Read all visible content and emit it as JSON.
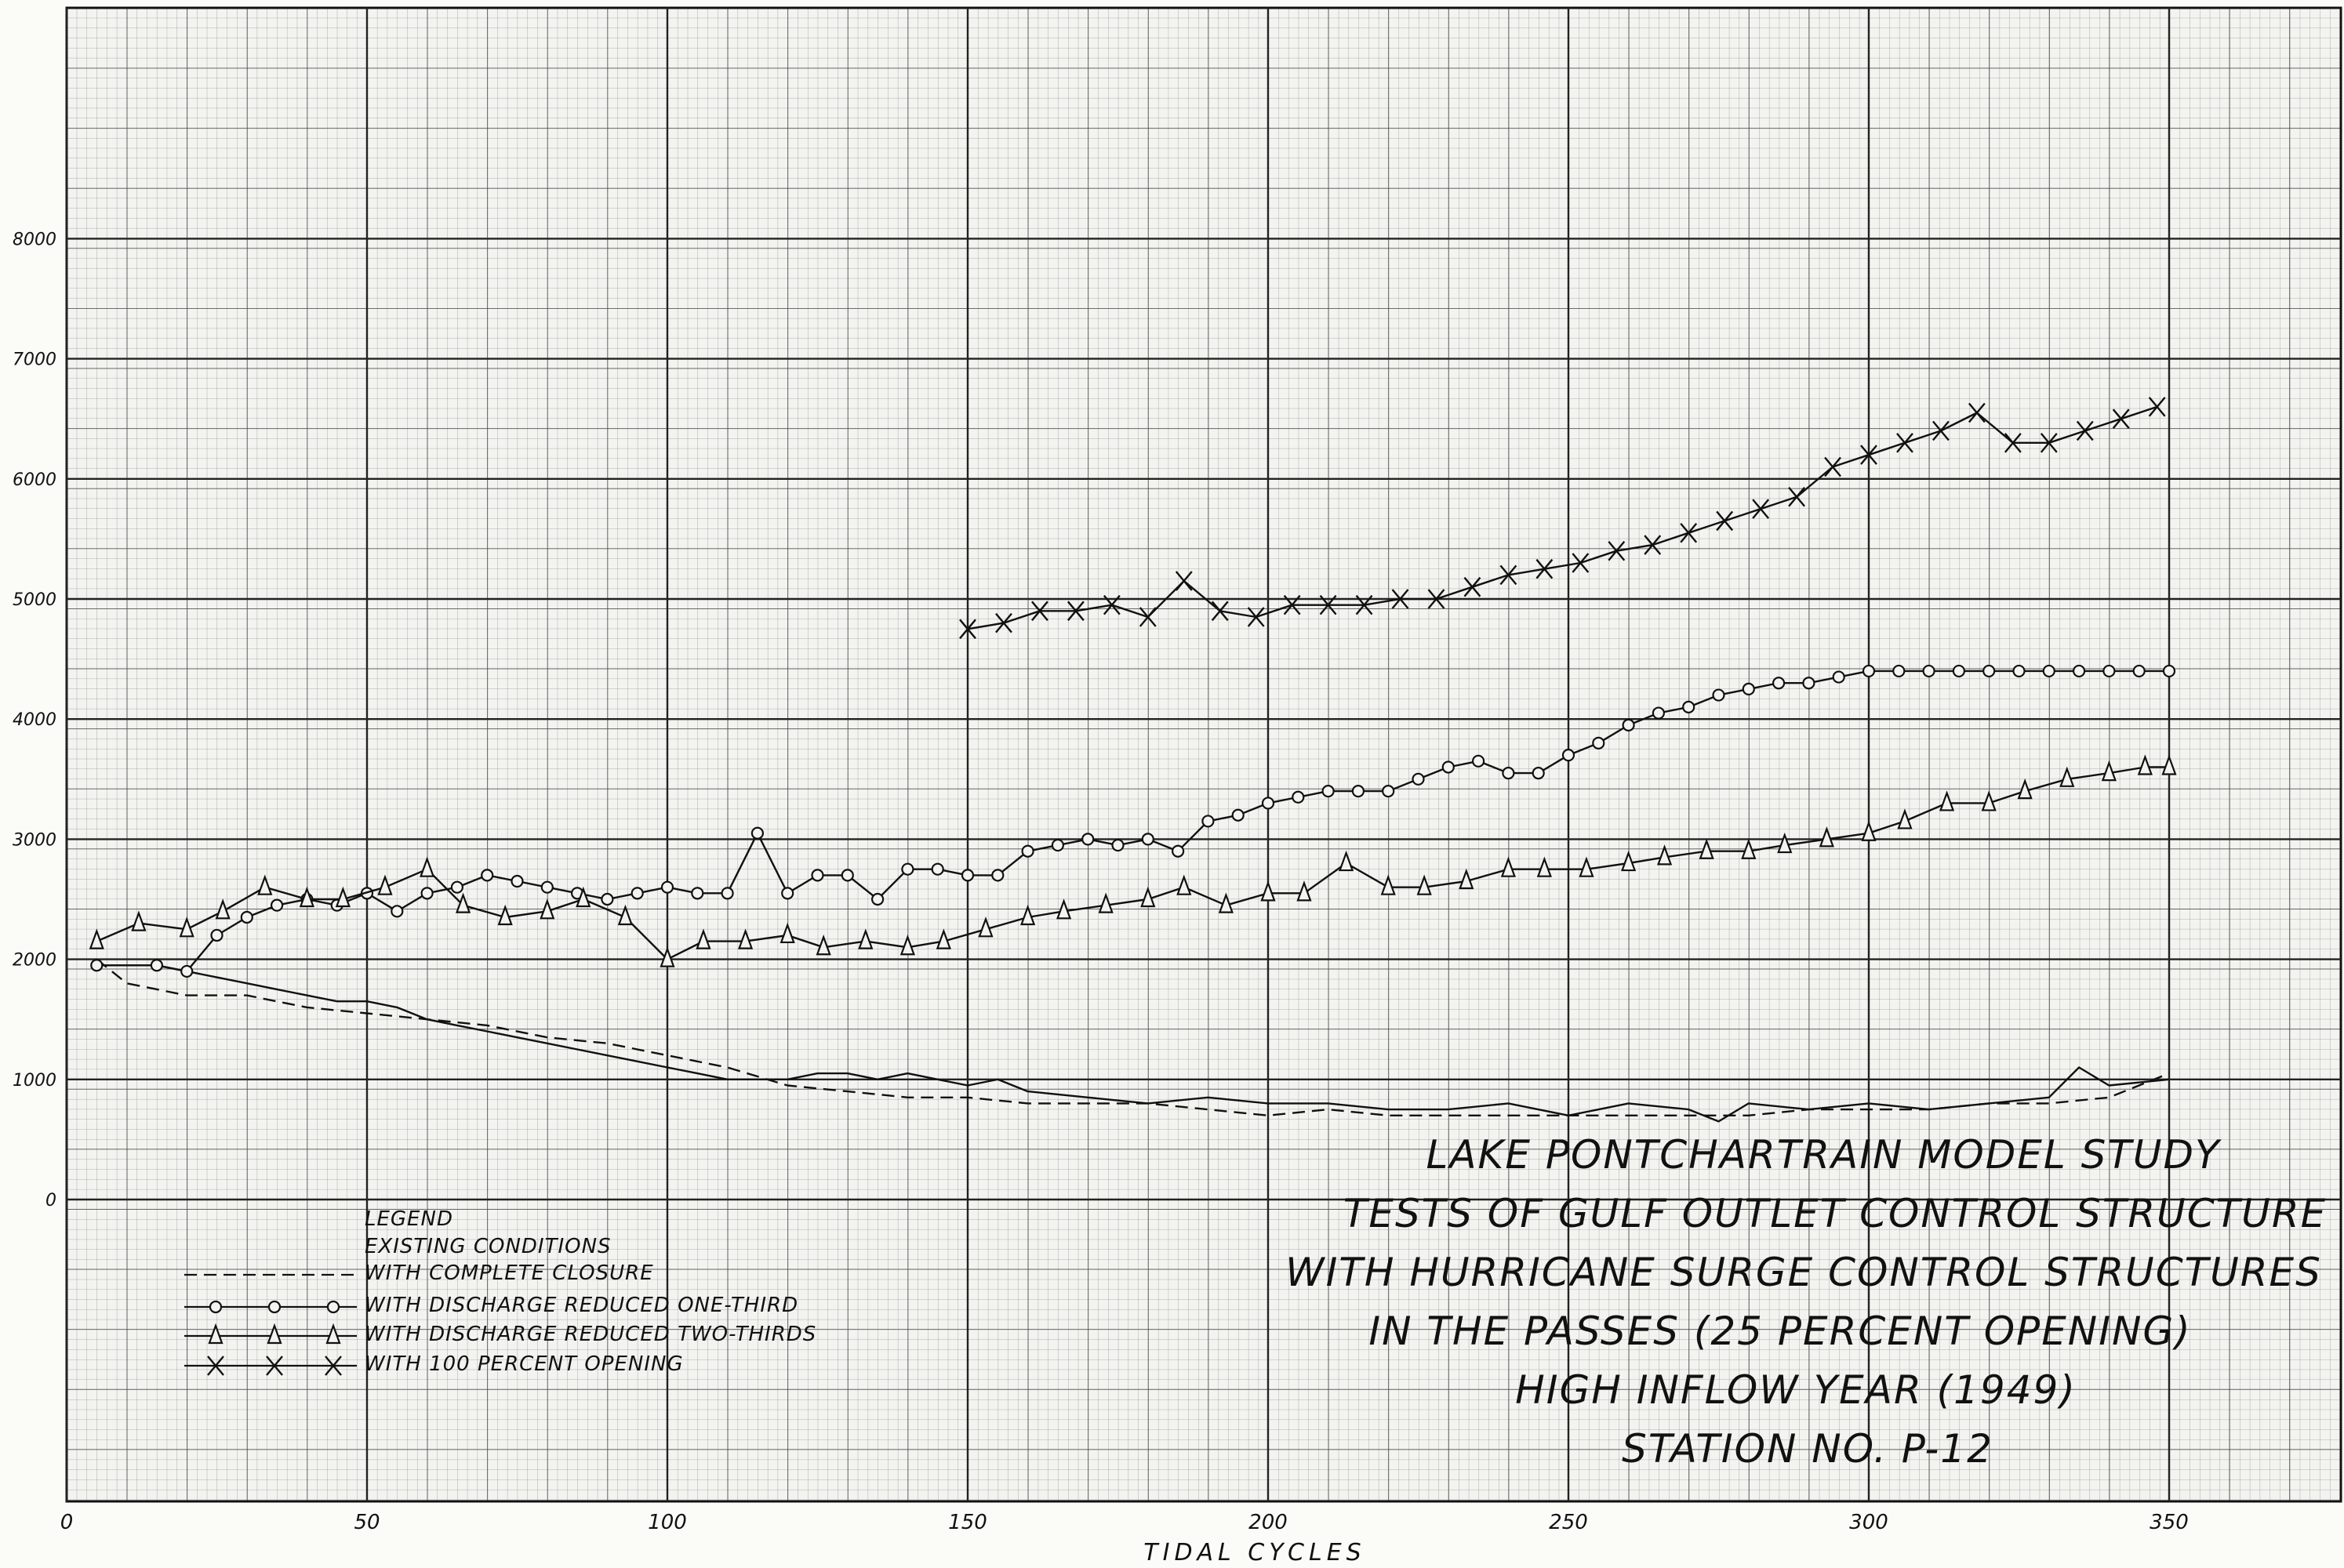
{
  "chart_data": {
    "type": "line",
    "title_lines": [
      "LAKE PONTCHARTRAIN MODEL STUDY",
      "TESTS OF GULF OUTLET CONTROL STRUCTURE",
      "WITH HURRICANE SURGE CONTROL STRUCTURES",
      "IN THE PASSES (25 PERCENT OPENING)",
      "HIGH INFLOW YEAR (1949)",
      "STATION NO. P-12"
    ],
    "xlabel": "TIDAL CYCLES",
    "ylabel": "",
    "xlim": [
      0,
      380
    ],
    "ylim": [
      -2500,
      10000
    ],
    "x_ticks": [
      "0",
      "50",
      "100",
      "150",
      "200",
      "250",
      "300",
      "350"
    ],
    "y_ticks": [
      "0",
      "1000",
      "2000",
      "3000",
      "4000",
      "5000",
      "6000",
      "7000",
      "8000"
    ],
    "grid": true,
    "legend": {
      "title": "LEGEND",
      "position": "bottom-left",
      "entries": [
        "EXISTING CONDITIONS",
        "WITH COMPLETE CLOSURE",
        "WITH DISCHARGE REDUCED ONE-THIRD",
        "WITH DISCHARGE REDUCED TWO-THIRDS",
        "WITH 100 PERCENT OPENING"
      ]
    },
    "series": [
      {
        "name": "EXISTING CONDITIONS",
        "style": "solid",
        "marker": "none",
        "x": [
          5,
          15,
          20,
          25,
          30,
          35,
          40,
          45,
          50,
          55,
          60,
          65,
          70,
          75,
          80,
          85,
          90,
          95,
          100,
          105,
          110,
          115,
          120,
          125,
          130,
          135,
          140,
          145,
          150,
          155,
          160,
          170,
          180,
          190,
          200,
          210,
          220,
          230,
          240,
          250,
          260,
          270,
          275,
          280,
          290,
          300,
          310,
          320,
          330,
          335,
          340,
          350
        ],
        "y": [
          1950,
          1950,
          1900,
          1850,
          1800,
          1750,
          1700,
          1650,
          1650,
          1600,
          1500,
          1450,
          1400,
          1350,
          1300,
          1250,
          1200,
          1150,
          1100,
          1050,
          1000,
          1000,
          1000,
          1050,
          1050,
          1000,
          1050,
          1000,
          950,
          1000,
          900,
          850,
          800,
          850,
          800,
          800,
          750,
          750,
          800,
          700,
          800,
          750,
          650,
          800,
          750,
          800,
          750,
          800,
          850,
          1100,
          950,
          1000
        ]
      },
      {
        "name": "WITH COMPLETE CLOSURE",
        "style": "dashed",
        "marker": "none",
        "x": [
          5,
          10,
          20,
          30,
          40,
          50,
          60,
          70,
          80,
          90,
          100,
          110,
          120,
          130,
          140,
          150,
          160,
          170,
          180,
          190,
          200,
          210,
          220,
          230,
          240,
          250,
          260,
          270,
          280,
          290,
          300,
          310,
          320,
          330,
          340,
          350
        ],
        "y": [
          2000,
          1800,
          1700,
          1700,
          1600,
          1550,
          1500,
          1450,
          1350,
          1300,
          1200,
          1100,
          950,
          900,
          850,
          850,
          800,
          800,
          800,
          750,
          700,
          750,
          700,
          700,
          700,
          700,
          700,
          700,
          700,
          750,
          750,
          750,
          800,
          800,
          850,
          1050
        ]
      },
      {
        "name": "WITH DISCHARGE REDUCED ONE-THIRD",
        "style": "solid",
        "marker": "circle",
        "x": [
          5,
          15,
          20,
          25,
          30,
          35,
          40,
          45,
          50,
          55,
          60,
          65,
          70,
          75,
          80,
          85,
          90,
          95,
          100,
          105,
          110,
          115,
          120,
          125,
          130,
          135,
          140,
          145,
          150,
          155,
          160,
          165,
          170,
          175,
          180,
          185,
          190,
          195,
          200,
          205,
          210,
          215,
          220,
          225,
          230,
          235,
          240,
          245,
          250,
          255,
          260,
          265,
          270,
          275,
          280,
          285,
          290,
          295,
          300,
          305,
          310,
          315,
          320,
          325,
          330,
          335,
          340,
          345,
          350
        ],
        "y": [
          1950,
          1950,
          1900,
          2200,
          2350,
          2450,
          2500,
          2450,
          2550,
          2400,
          2550,
          2600,
          2700,
          2650,
          2600,
          2550,
          2500,
          2550,
          2600,
          2550,
          2550,
          3050,
          2550,
          2700,
          2700,
          2500,
          2750,
          2750,
          2700,
          2700,
          2900,
          2950,
          3000,
          2950,
          3000,
          2900,
          3150,
          3200,
          3300,
          3350,
          3400,
          3400,
          3400,
          3500,
          3600,
          3650,
          3550,
          3550,
          3700,
          3800,
          3950,
          4050,
          4100,
          4200,
          4250,
          4300,
          4300,
          4350,
          4400,
          4400,
          4400,
          4400,
          4400,
          4400,
          4400,
          4400,
          4400,
          4400,
          4400
        ]
      },
      {
        "name": "WITH DISCHARGE REDUCED TWO-THIRDS",
        "style": "solid",
        "marker": "triangle",
        "x": [
          5,
          12,
          20,
          26,
          33,
          40,
          46,
          53,
          60,
          66,
          73,
          80,
          86,
          93,
          100,
          106,
          113,
          120,
          126,
          133,
          140,
          146,
          153,
          160,
          166,
          173,
          180,
          186,
          193,
          200,
          206,
          213,
          220,
          226,
          233,
          240,
          246,
          253,
          260,
          266,
          273,
          280,
          286,
          293,
          300,
          306,
          313,
          320,
          326,
          333,
          340,
          346,
          350
        ],
        "y": [
          2150,
          2300,
          2250,
          2400,
          2600,
          2500,
          2500,
          2600,
          2750,
          2450,
          2350,
          2400,
          2500,
          2350,
          2000,
          2150,
          2150,
          2200,
          2100,
          2150,
          2100,
          2150,
          2250,
          2350,
          2400,
          2450,
          2500,
          2600,
          2450,
          2550,
          2550,
          2800,
          2600,
          2600,
          2650,
          2750,
          2750,
          2750,
          2800,
          2850,
          2900,
          2900,
          2950,
          3000,
          3050,
          3150,
          3300,
          3300,
          3400,
          3500,
          3550,
          3600,
          3600
        ]
      },
      {
        "name": "WITH 100 PERCENT OPENING",
        "style": "solid",
        "marker": "x",
        "x": [
          150,
          156,
          162,
          168,
          174,
          180,
          186,
          192,
          198,
          204,
          210,
          216,
          222,
          228,
          234,
          240,
          246,
          252,
          258,
          264,
          270,
          276,
          282,
          288,
          294,
          300,
          306,
          312,
          318,
          324,
          330,
          336,
          342,
          348
        ],
        "y": [
          4750,
          4800,
          4900,
          4900,
          4950,
          4850,
          5150,
          4900,
          4850,
          4950,
          4950,
          4950,
          5000,
          5000,
          5100,
          5200,
          5250,
          5300,
          5400,
          5450,
          5550,
          5650,
          5750,
          5850,
          6100,
          6200,
          6300,
          6400,
          6550,
          6300,
          6300,
          6400,
          6500,
          6600
        ]
      }
    ]
  }
}
